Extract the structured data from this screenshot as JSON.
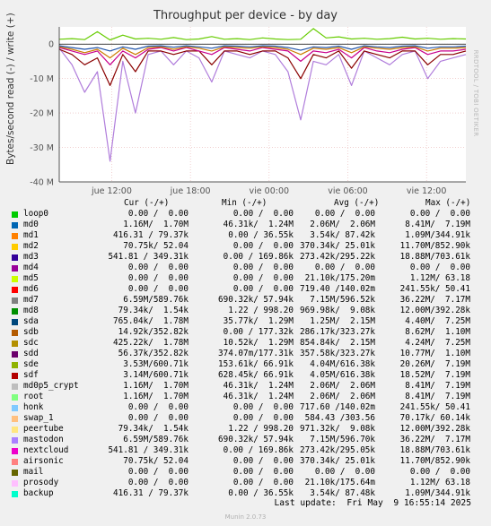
{
  "chart_data": {
    "type": "line",
    "title": "Throughput per device - by day",
    "ylabel": "Bytes/second read (-) / write (+)",
    "ylim": [
      -40000000,
      5000000
    ],
    "yticks": [
      {
        "value": 0,
        "label": "0"
      },
      {
        "value": -10000000,
        "label": "-10 M"
      },
      {
        "value": -20000000,
        "label": "-20 M"
      },
      {
        "value": -30000000,
        "label": "-30 M"
      },
      {
        "value": -40000000,
        "label": "-40 M"
      }
    ],
    "xlim": [
      0,
      31
    ],
    "xticks": [
      {
        "value": 4,
        "label": "jue 12:00"
      },
      {
        "value": 10,
        "label": "jue 18:00"
      },
      {
        "value": 16,
        "label": "vie 00:00"
      },
      {
        "value": 22,
        "label": "vie 06:00"
      },
      {
        "value": 28,
        "label": "vie 12:00"
      }
    ],
    "grid": true,
    "series_shape": [
      {
        "color": "#66cc00",
        "values": [
          1.4,
          1.6,
          1.3,
          3.6,
          1.2,
          2.6,
          1.5,
          1.7,
          1.4,
          1.9,
          1.3,
          1.5,
          2.2,
          1.4,
          1.6,
          1.3,
          1.8,
          1.5,
          1.3,
          1.4,
          4.5,
          1.8,
          2.1,
          1.5,
          1.7,
          1.4,
          1.6,
          2.0,
          1.5,
          1.7,
          1.4,
          1.6,
          1.5
        ]
      },
      {
        "color": "#b07ddb",
        "values": [
          -1.2,
          -6,
          -14,
          -8,
          -34,
          -5,
          -20,
          -3,
          -2,
          -6,
          -2,
          -4,
          -11,
          -2,
          -3,
          -4,
          -2,
          -3,
          -8,
          -22,
          -5,
          -6,
          -3,
          -12,
          -2,
          -4,
          -6,
          -3,
          -2,
          -10,
          -5,
          -4,
          -3
        ]
      },
      {
        "color": "#8a0000",
        "values": [
          -1.5,
          -3,
          -6,
          -4,
          -12,
          -3,
          -8,
          -2,
          -2,
          -3,
          -2,
          -2,
          -6,
          -2,
          -2,
          -3,
          -2,
          -2,
          -4,
          -10,
          -3,
          -4,
          -2,
          -7,
          -2,
          -3,
          -4,
          -2,
          -2,
          -6,
          -3,
          -3,
          -2
        ]
      },
      {
        "color": "#c8008c",
        "values": [
          -1,
          -2,
          -3,
          -2,
          -6,
          -2,
          -4,
          -1.5,
          -1,
          -2,
          -1,
          -2,
          -3,
          -1,
          -1.5,
          -2,
          -1,
          -1.5,
          -2,
          -5,
          -2,
          -2.5,
          -1.5,
          -4,
          -1,
          -2,
          -2.5,
          -1.5,
          -1,
          -3,
          -2,
          -2,
          -1.5
        ]
      },
      {
        "color": "#cc7a00",
        "values": [
          -0.8,
          -1.5,
          -2.5,
          -1.5,
          -4,
          -1.2,
          -3,
          -1,
          -0.8,
          -1.5,
          -0.8,
          -1.2,
          -2,
          -0.8,
          -1,
          -1.2,
          -0.8,
          -1,
          -1.5,
          -3,
          -1.2,
          -1.5,
          -1,
          -2.5,
          -0.8,
          -1.2,
          -1.5,
          -1,
          -0.8,
          -2,
          -1.2,
          -1.2,
          -1
        ]
      },
      {
        "color": "#2255aa",
        "values": [
          -0.5,
          -1,
          -1.5,
          -1,
          -2,
          -0.8,
          -1.5,
          -0.6,
          -0.5,
          -0.9,
          -0.5,
          -0.8,
          -1.2,
          -0.5,
          -0.6,
          -0.8,
          -0.5,
          -0.6,
          -1,
          -1.8,
          -0.8,
          -1,
          -0.6,
          -1.5,
          -0.5,
          -0.8,
          -1,
          -0.6,
          -0.5,
          -1.2,
          -0.8,
          -0.8,
          -0.6
        ]
      }
    ]
  },
  "legend": {
    "headers": {
      "cur": "Cur (-/+)",
      "min": "Min (-/+)",
      "avg": "Avg (-/+)",
      "max": "Max (-/+)"
    },
    "rows": [
      {
        "name": "loop0",
        "color": "#00cc00",
        "cur": "0.00 /  0.00",
        "min": "0.00 /  0.00",
        "avg": "0.00 /  0.00",
        "max": "0.00 /  0.00"
      },
      {
        "name": "md0",
        "color": "#0066b3",
        "cur": "1.16M/  1.70M",
        "min": "46.31k/  1.24M",
        "avg": "2.06M/  2.06M",
        "max": "8.41M/  7.19M"
      },
      {
        "name": "md1",
        "color": "#ff8000",
        "cur": "416.31 / 79.37k",
        "min": "0.00 / 36.55k",
        "avg": "3.54k/ 87.42k",
        "max": "1.09M/344.91k"
      },
      {
        "name": "md2",
        "color": "#ffcc00",
        "cur": "70.75k/ 52.04",
        "min": "0.00 /  0.00",
        "avg": "370.34k/ 25.01k",
        "max": "11.70M/852.90k"
      },
      {
        "name": "md3",
        "color": "#330099",
        "cur": "541.81 / 349.31k",
        "min": "0.00 / 169.86k",
        "avg": "273.42k/295.22k",
        "max": "18.88M/703.61k"
      },
      {
        "name": "md4",
        "color": "#990099",
        "cur": "0.00 /  0.00",
        "min": "0.00 /  0.00",
        "avg": "0.00 /  0.00",
        "max": "0.00 /  0.00"
      },
      {
        "name": "md5",
        "color": "#ccff00",
        "cur": "0.00 /  0.00",
        "min": "0.00 /  0.00",
        "avg": "21.10k/175.20m",
        "max": "1.12M/ 63.18"
      },
      {
        "name": "md6",
        "color": "#ff0000",
        "cur": "0.00 /  0.00",
        "min": "0.00 /  0.00",
        "avg": "719.40 /140.02m",
        "max": "241.55k/ 50.41"
      },
      {
        "name": "md7",
        "color": "#808080",
        "cur": "6.59M/589.76k",
        "min": "690.32k/ 57.94k",
        "avg": "7.15M/596.52k",
        "max": "36.22M/  7.17M"
      },
      {
        "name": "md8",
        "color": "#008f00",
        "cur": "79.34k/  1.54k",
        "min": "1.22 / 998.20",
        "avg": "969.98k/  9.08k",
        "max": "12.00M/392.28k"
      },
      {
        "name": "sda",
        "color": "#00487d",
        "cur": "765.04k/  1.78M",
        "min": "35.77k/  1.29M",
        "avg": "1.25M/  2.15M",
        "max": "4.40M/  7.25M"
      },
      {
        "name": "sdb",
        "color": "#b35a00",
        "cur": "14.92k/352.82k",
        "min": "0.00 / 177.32k",
        "avg": "286.17k/323.27k",
        "max": "8.62M/  1.10M"
      },
      {
        "name": "sdc",
        "color": "#b38f00",
        "cur": "425.22k/  1.78M",
        "min": "10.52k/  1.29M",
        "avg": "854.84k/  2.15M",
        "max": "4.24M/  7.25M"
      },
      {
        "name": "sdd",
        "color": "#6b006b",
        "cur": "56.37k/352.82k",
        "min": "374.07m/177.31k",
        "avg": "357.58k/323.27k",
        "max": "10.77M/  1.10M"
      },
      {
        "name": "sde",
        "color": "#8fb300",
        "cur": "3.53M/600.71k",
        "min": "153.61k/ 66.91k",
        "avg": "4.04M/616.38k",
        "max": "20.26M/  7.19M"
      },
      {
        "name": "sdf",
        "color": "#b30000",
        "cur": "3.14M/600.71k",
        "min": "628.45k/ 66.91k",
        "avg": "4.05M/616.38k",
        "max": "18.52M/  7.19M"
      },
      {
        "name": "md0p5_crypt",
        "color": "#bebebe",
        "cur": "1.16M/  1.70M",
        "min": "46.31k/  1.24M",
        "avg": "2.06M/  2.06M",
        "max": "8.41M/  7.19M"
      },
      {
        "name": "root",
        "color": "#80ff80",
        "cur": "1.16M/  1.70M",
        "min": "46.31k/  1.24M",
        "avg": "2.06M/  2.06M",
        "max": "8.41M/  7.19M"
      },
      {
        "name": "honk",
        "color": "#80c9ff",
        "cur": "0.00 /  0.00",
        "min": "0.00 /  0.00",
        "avg": "717.60 /140.02m",
        "max": "241.55k/ 50.41"
      },
      {
        "name": "swap_1",
        "color": "#ffc080",
        "cur": "0.00 /  0.00",
        "min": "0.00 /  0.00",
        "avg": "584.43 /303.56",
        "max": "70.17k/ 60.14k"
      },
      {
        "name": "peertube",
        "color": "#ffe680",
        "cur": "79.34k/  1.54k",
        "min": "1.22 / 998.20",
        "avg": "971.32k/  9.08k",
        "max": "12.00M/392.28k"
      },
      {
        "name": "mastodon",
        "color": "#aa80ff",
        "cur": "6.59M/589.76k",
        "min": "690.32k/ 57.94k",
        "avg": "7.15M/596.70k",
        "max": "36.22M/  7.17M"
      },
      {
        "name": "nextcloud",
        "color": "#ee00cc",
        "cur": "541.81 / 349.31k",
        "min": "0.00 / 169.86k",
        "avg": "273.42k/295.05k",
        "max": "18.88M/703.61k"
      },
      {
        "name": "airsonic",
        "color": "#ff8080",
        "cur": "70.75k/ 52.04",
        "min": "0.00 /  0.00",
        "avg": "370.34k/ 25.01k",
        "max": "11.70M/852.90k"
      },
      {
        "name": "mail",
        "color": "#666600",
        "cur": "0.00 /  0.00",
        "min": "0.00 /  0.00",
        "avg": "0.00 /  0.00",
        "max": "0.00 /  0.00"
      },
      {
        "name": "prosody",
        "color": "#ffbfff",
        "cur": "0.00 /  0.00",
        "min": "0.00 /  0.00",
        "avg": "21.10k/175.64m",
        "max": "1.12M/ 63.18"
      },
      {
        "name": "backup",
        "color": "#00ffcc",
        "cur": "416.31 / 79.37k",
        "min": "0.00 / 36.55k",
        "avg": "3.54k/ 87.48k",
        "max": "1.09M/344.91k"
      }
    ]
  },
  "side_tag": "RRDTOOL / TOBI OETIKER",
  "last_update": "Last update:  Fri May  9 16:55:14 2025",
  "generator": "Munin 2.0.73"
}
